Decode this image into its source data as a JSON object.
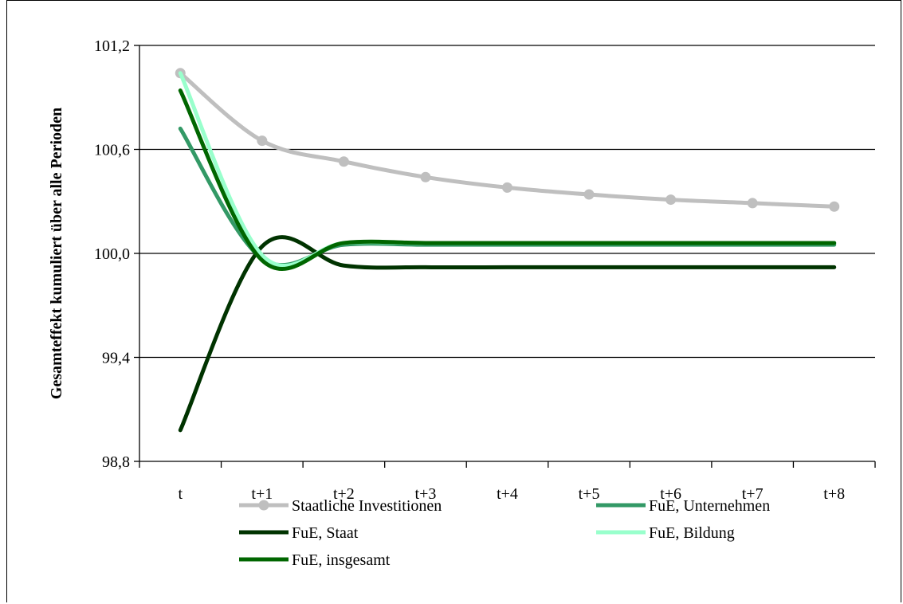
{
  "chart_data": {
    "type": "line",
    "title": "",
    "xlabel": "",
    "ylabel": "Gesamteffekt kumuliert über alle Perioden",
    "categories": [
      "t",
      "t+1",
      "t+2",
      "t+3",
      "t+4",
      "t+5",
      "t+6",
      "t+7",
      "t+8"
    ],
    "ylim": [
      98.8,
      101.2
    ],
    "yticks": [
      98.8,
      99.4,
      100.0,
      100.6,
      101.2
    ],
    "ytick_labels": [
      "98,8",
      "99,4",
      "100,0",
      "100,6",
      "101,2"
    ],
    "grid": true,
    "legend": "bottom",
    "series": [
      {
        "name": "Staatliche Investitionen",
        "color": "#bfbfbf",
        "marker": "circle",
        "values": [
          101.04,
          100.65,
          100.53,
          100.44,
          100.38,
          100.34,
          100.31,
          100.29,
          100.27
        ]
      },
      {
        "name": "FuE, Unternehmen",
        "color": "#339966",
        "marker": "none",
        "values": [
          100.72,
          99.97,
          100.05,
          100.05,
          100.05,
          100.05,
          100.05,
          100.05,
          100.05
        ]
      },
      {
        "name": "FuE, Staat",
        "color": "#003300",
        "marker": "none",
        "values": [
          98.98,
          100.04,
          99.93,
          99.92,
          99.92,
          99.92,
          99.92,
          99.92,
          99.92
        ]
      },
      {
        "name": "FuE, Bildung",
        "color": "#99ffcc",
        "marker": "none",
        "values": [
          101.04,
          99.99,
          100.06,
          100.06,
          100.06,
          100.06,
          100.06,
          100.06,
          100.06
        ]
      },
      {
        "name": "FuE, insgesamt",
        "color": "#006600",
        "marker": "none",
        "values": [
          100.94,
          99.96,
          100.06,
          100.06,
          100.06,
          100.06,
          100.06,
          100.06,
          100.06
        ]
      }
    ]
  }
}
